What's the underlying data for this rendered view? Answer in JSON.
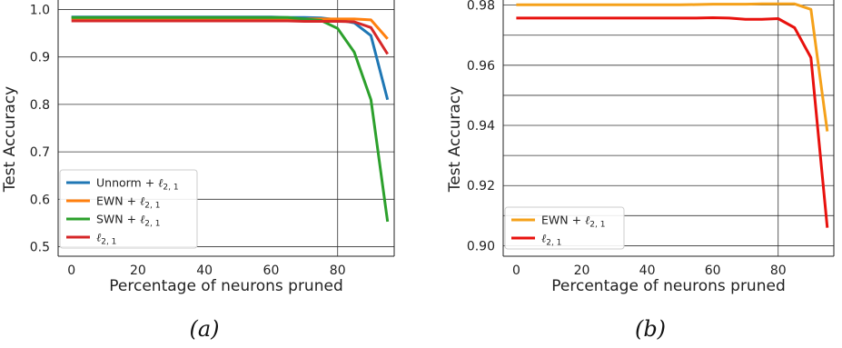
{
  "chart_data": [
    {
      "id": "a",
      "type": "line",
      "caption": "(a)",
      "xlabel": "Percentage of neurons pruned",
      "ylabel": "Test Accuracy",
      "xlim": [
        -4,
        97
      ],
      "ylim": [
        0.48,
        1.02
      ],
      "xticks": [
        0,
        20,
        40,
        60,
        80
      ],
      "xtick_labels": [
        "0",
        "20",
        "40",
        "60",
        "80"
      ],
      "yticks": [
        0.5,
        0.6,
        0.7,
        0.8,
        0.9,
        1.0
      ],
      "ytick_labels": [
        "0.5",
        "0.6",
        "0.7",
        "0.8",
        "0.9",
        "1.0"
      ],
      "grid": "horizontal",
      "vline_x": 80,
      "legend_position": "lower-left",
      "series": [
        {
          "name": "Unnorm + ",
          "sub": "2, 1",
          "color": "#1f77b4",
          "x": [
            0,
            5,
            10,
            15,
            20,
            25,
            30,
            35,
            40,
            45,
            50,
            55,
            60,
            65,
            70,
            75,
            80,
            85,
            90,
            95
          ],
          "y": [
            0.984,
            0.984,
            0.984,
            0.984,
            0.984,
            0.984,
            0.984,
            0.984,
            0.984,
            0.984,
            0.984,
            0.984,
            0.984,
            0.983,
            0.983,
            0.982,
            0.978,
            0.972,
            0.945,
            0.81
          ]
        },
        {
          "name": "EWN + ",
          "sub": "2, 1",
          "color": "#ff7f0e",
          "x": [
            0,
            5,
            10,
            15,
            20,
            25,
            30,
            35,
            40,
            45,
            50,
            55,
            60,
            65,
            70,
            75,
            80,
            85,
            90,
            95
          ],
          "y": [
            0.98,
            0.98,
            0.98,
            0.98,
            0.98,
            0.98,
            0.98,
            0.98,
            0.98,
            0.98,
            0.98,
            0.98,
            0.98,
            0.98,
            0.98,
            0.98,
            0.98,
            0.98,
            0.978,
            0.938
          ]
        },
        {
          "name": "SWN + ",
          "sub": "2, 1",
          "color": "#2ca02c",
          "x": [
            0,
            5,
            10,
            15,
            20,
            25,
            30,
            35,
            40,
            45,
            50,
            55,
            60,
            65,
            70,
            75,
            80,
            85,
            90,
            95
          ],
          "y": [
            0.983,
            0.983,
            0.983,
            0.983,
            0.983,
            0.983,
            0.983,
            0.983,
            0.983,
            0.983,
            0.983,
            0.983,
            0.983,
            0.983,
            0.98,
            0.977,
            0.96,
            0.91,
            0.81,
            0.553
          ]
        },
        {
          "name": "",
          "sub": "2, 1",
          "color": "#d62728",
          "x": [
            0,
            5,
            10,
            15,
            20,
            25,
            30,
            35,
            40,
            45,
            50,
            55,
            60,
            65,
            70,
            75,
            80,
            85,
            90,
            95
          ],
          "y": [
            0.976,
            0.976,
            0.976,
            0.976,
            0.976,
            0.976,
            0.976,
            0.976,
            0.976,
            0.976,
            0.976,
            0.976,
            0.976,
            0.976,
            0.975,
            0.975,
            0.975,
            0.974,
            0.962,
            0.906
          ]
        }
      ]
    },
    {
      "id": "b",
      "type": "line",
      "caption": "(b)",
      "xlabel": "Percentage of neurons pruned",
      "ylabel": "Test Accuracy",
      "xlim": [
        -4,
        97
      ],
      "ylim": [
        0.8965,
        0.9817
      ],
      "xticks": [
        0,
        20,
        40,
        60,
        80
      ],
      "xtick_labels": [
        "0",
        "20",
        "40",
        "60",
        "80"
      ],
      "yticks": [
        0.9,
        0.91,
        0.92,
        0.93,
        0.94,
        0.95,
        0.96,
        0.97,
        0.98
      ],
      "ytick_labels": [
        "0.90",
        "",
        "0.92",
        "",
        "0.94",
        "",
        "0.96",
        "",
        "0.98"
      ],
      "grid": "horizontal",
      "vline_x": 80,
      "legend_position": "lower-left",
      "series": [
        {
          "name": "EWN + ",
          "sub": "2, 1",
          "color": "#f5a11a",
          "x": [
            0,
            5,
            10,
            15,
            20,
            25,
            30,
            35,
            40,
            45,
            50,
            55,
            60,
            65,
            70,
            75,
            80,
            85,
            90,
            95
          ],
          "y": [
            0.9801,
            0.9801,
            0.9801,
            0.9801,
            0.9801,
            0.9801,
            0.9801,
            0.9801,
            0.9801,
            0.9801,
            0.9801,
            0.9802,
            0.9803,
            0.9803,
            0.9803,
            0.9804,
            0.9804,
            0.9804,
            0.9786,
            0.938
          ]
        },
        {
          "name": "",
          "sub": "2, 1",
          "color": "#e8110d",
          "x": [
            0,
            5,
            10,
            15,
            20,
            25,
            30,
            35,
            40,
            45,
            50,
            55,
            60,
            65,
            70,
            75,
            80,
            85,
            90,
            95
          ],
          "y": [
            0.9757,
            0.9757,
            0.9757,
            0.9757,
            0.9757,
            0.9757,
            0.9757,
            0.9757,
            0.9757,
            0.9757,
            0.9757,
            0.9757,
            0.9758,
            0.9757,
            0.9753,
            0.9753,
            0.9755,
            0.9725,
            0.9625,
            0.906
          ]
        }
      ]
    }
  ]
}
